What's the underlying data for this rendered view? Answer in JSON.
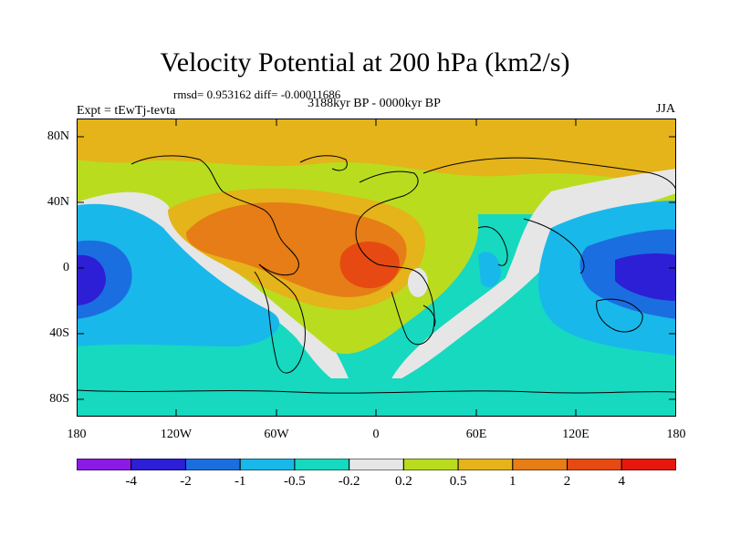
{
  "title": "Velocity Potential at 200 hPa (km2/s)",
  "stats_line": "rmsd= 0.953162 diff= -0.00011686",
  "period": "3188kyr BP - 0000kyr BP",
  "experiment": "Expt = tEwTj-tevta",
  "season": "JJA",
  "lat_labels": [
    "80N",
    "40N",
    "0",
    "40S",
    "80S"
  ],
  "lon_labels": [
    "180",
    "120W",
    "60W",
    "0",
    "60E",
    "120E",
    "180"
  ],
  "colorbar": {
    "colors": [
      "#8b1ae6",
      "#2d1fd6",
      "#1b6ee0",
      "#19b8ea",
      "#16d9c0",
      "#e6e6e6",
      "#b9dc1f",
      "#e5b31a",
      "#e67d16",
      "#e64a12",
      "#e6180e"
    ],
    "labels": [
      "-4",
      "-2",
      "-1",
      "-0.5",
      "-0.2",
      "0.2",
      "0.5",
      "1",
      "2",
      "4"
    ]
  }
}
